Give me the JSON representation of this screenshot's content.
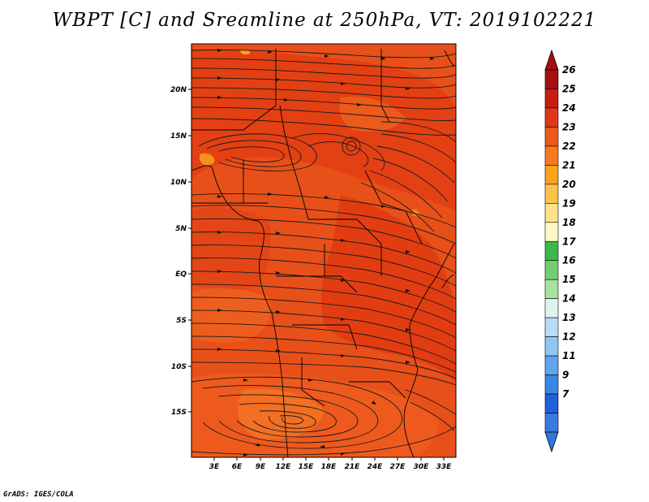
{
  "title": "WBPT [C] and Sreamline at 250hPa, VT: 2019102221",
  "credit": "GrADS: IGES/COLA",
  "map": {
    "y_ticks": [
      "20N",
      "15N",
      "10N",
      "5N",
      "EQ",
      "5S",
      "10S",
      "15S"
    ],
    "x_ticks": [
      "3E",
      "6E",
      "9E",
      "12E",
      "15E",
      "18E",
      "21E",
      "24E",
      "27E",
      "30E",
      "33E"
    ],
    "field_colors": {
      "dominant": "#E8501A",
      "warm_core": "#E03A12",
      "cooler": "#F26C22",
      "cool_patch": "#F7901E"
    }
  },
  "colorbar": {
    "labels": [
      "26",
      "25",
      "24",
      "23",
      "22",
      "21",
      "20",
      "19",
      "18",
      "17",
      "16",
      "15",
      "14",
      "13",
      "12",
      "11",
      "9",
      "7"
    ],
    "colors": [
      "#A50F0F",
      "#C81B12",
      "#E0361B",
      "#EC5A1E",
      "#F47A1E",
      "#F9A21C",
      "#FCC24A",
      "#FDE28A",
      "#FEF6C4",
      "#3CB84A",
      "#74CE6E",
      "#A8E2A0",
      "#DEF3EE",
      "#B6DCF6",
      "#8FC6F2",
      "#5FA6EC",
      "#3A86E4",
      "#2060D8",
      "#3A7AE0"
    ],
    "top_arrow_color": "#A50F0F",
    "bottom_arrow_color": "#2F76E0"
  }
}
